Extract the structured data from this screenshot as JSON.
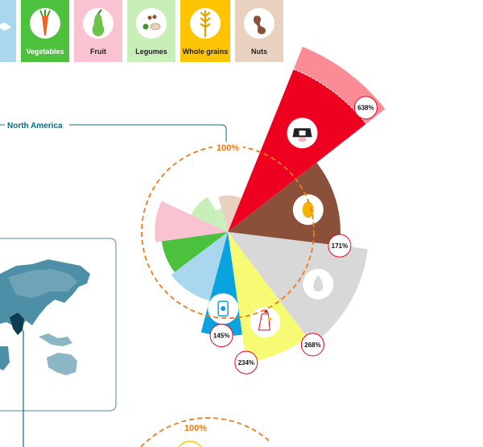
{
  "legend": {
    "items": [
      {
        "key": "fish",
        "label": "",
        "bg": "#a9d7ee",
        "text_color": "#ffffff"
      },
      {
        "key": "vegetables",
        "label": "Vegetables",
        "bg": "#4cc13d",
        "text_color": "#ffffff"
      },
      {
        "key": "fruit",
        "label": "Fruit",
        "bg": "#f9c3d2",
        "text_color": "#222222"
      },
      {
        "key": "legumes",
        "label": "Legumes",
        "bg": "#c8efb8",
        "text_color": "#222222"
      },
      {
        "key": "whole_grains",
        "label": "Whole grains",
        "bg": "#ffc400",
        "text_color": "#222222"
      },
      {
        "key": "nuts",
        "label": "Nuts",
        "bg": "#e9d1bf",
        "text_color": "#222222"
      }
    ]
  },
  "region": {
    "name": "North America"
  },
  "reference_circle": {
    "label": "100%",
    "value": 100
  },
  "second_chart": {
    "reference_label": "100%"
  },
  "colors": {
    "red_meat": "#ee0020",
    "red_meat_excess": "#fb8c96",
    "eggs": "#8b5039",
    "dairy": "#d8d8d8",
    "poultry": "#f6fb73",
    "fish": "#0aa3e0",
    "fish_light": "#a9d7ee",
    "vegetables": "#4cc13d",
    "fruit": "#f9c3d2",
    "legumes": "#c8efb8",
    "nuts": "#e9d1bf",
    "ref_line": "#ee7a1a",
    "map_sea": "#4d8fa6",
    "region_line": "#0d6a82"
  },
  "chart_data": {
    "type": "polar-area",
    "title": "",
    "region": "North America",
    "reference_value": 100,
    "labels_printed": [
      {
        "category": "Red meat",
        "value": 638,
        "label": "638%"
      },
      {
        "category": "Eggs",
        "value": 171,
        "label": "171%"
      },
      {
        "category": "Dairy",
        "value": 268,
        "label": "268%"
      },
      {
        "category": "Poultry",
        "value": 234,
        "label": "234%"
      },
      {
        "category": "Fish",
        "value": 145,
        "label": "145%"
      }
    ],
    "sectors": [
      {
        "category": "Red meat",
        "value": 638,
        "start_deg": 22,
        "end_deg": 52,
        "excess_band": true,
        "icon": "cow-icon",
        "labeled": true
      },
      {
        "category": "Eggs",
        "value": 171,
        "start_deg": 52,
        "end_deg": 97,
        "icon": "egg-icon",
        "labeled": true
      },
      {
        "category": "Dairy",
        "value": 268,
        "start_deg": 97,
        "end_deg": 143,
        "icon": "milk-drop-icon",
        "labeled": true
      },
      {
        "category": "Poultry",
        "value": 234,
        "start_deg": 143,
        "end_deg": 172,
        "icon": "chicken-icon",
        "labeled": true
      },
      {
        "category": "Fish",
        "value": 145,
        "start_deg": 172,
        "end_deg": 195,
        "icon": "fish-can-icon",
        "labeled": true
      },
      {
        "category": "Fish (other)",
        "value": 68,
        "start_deg": 195,
        "end_deg": 233,
        "labeled": false
      },
      {
        "category": "Vegetables",
        "value": 60,
        "start_deg": 233,
        "end_deg": 262,
        "labeled": false
      },
      {
        "category": "Fruit",
        "value": 72,
        "start_deg": 262,
        "end_deg": 295,
        "labeled": false
      },
      {
        "category": "Legumes",
        "value": 22,
        "start_deg": 295,
        "end_deg": 330,
        "labeled": false
      },
      {
        "category": "Whole grains",
        "value": 8,
        "start_deg": 330,
        "end_deg": 345,
        "labeled": false
      },
      {
        "category": "Nuts",
        "value": 18,
        "start_deg": 345,
        "end_deg": 382,
        "labeled": false
      }
    ]
  }
}
